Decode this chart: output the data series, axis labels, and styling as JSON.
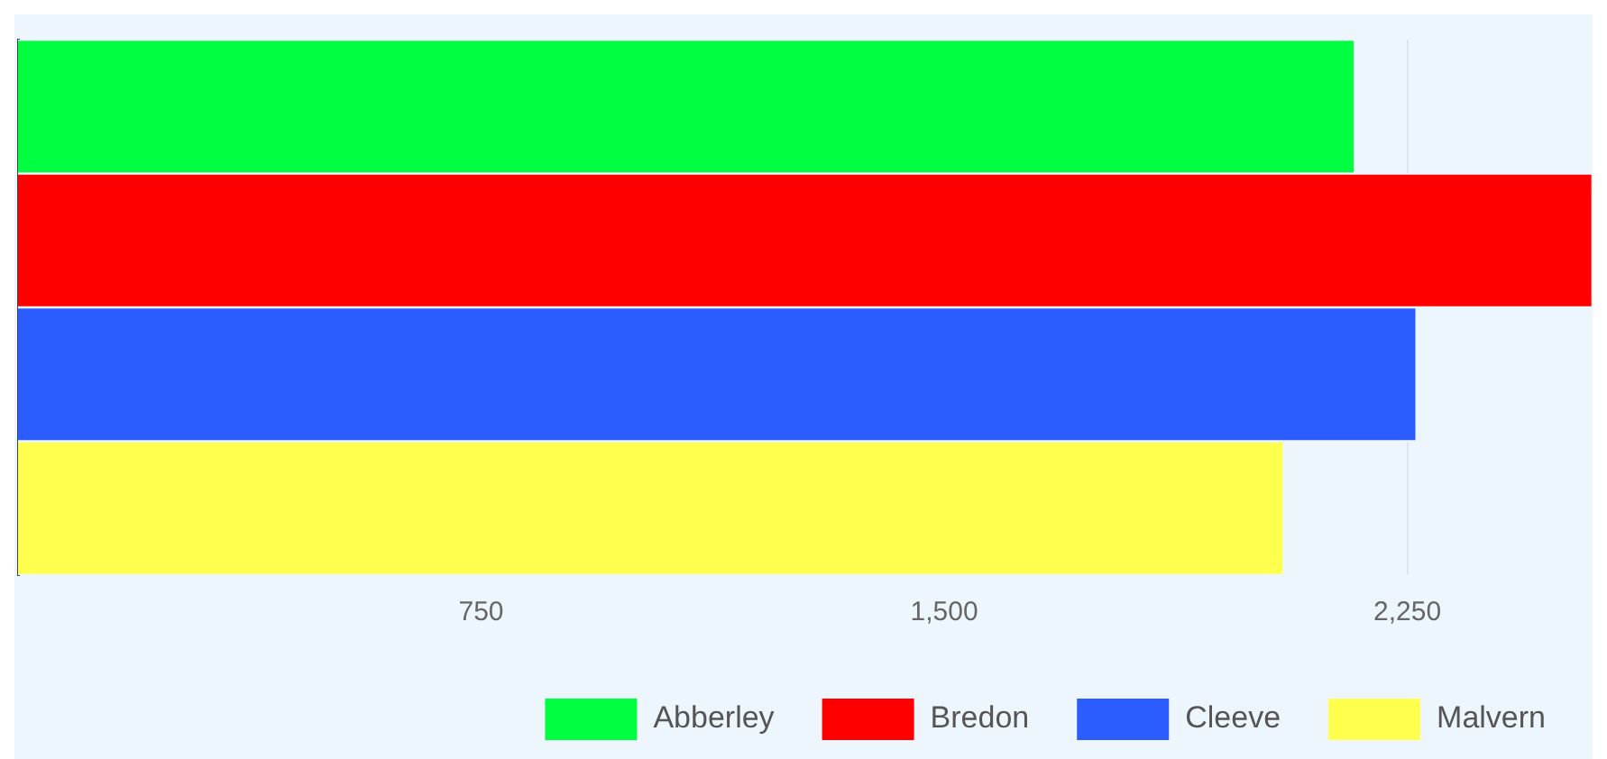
{
  "chart_data": {
    "type": "bar",
    "orientation": "horizontal",
    "categories": [
      null
    ],
    "series": [
      {
        "name": "Abberley",
        "color": "#00ff40",
        "values": [
          2165
        ]
      },
      {
        "name": "Bredon",
        "color": "#ff0000",
        "values": [
          2550
        ]
      },
      {
        "name": "Cleeve",
        "color": "#2a5cff",
        "values": [
          2265
        ]
      },
      {
        "name": "Malvern",
        "color": "#ffff4d",
        "values": [
          2050
        ]
      }
    ],
    "xlim": [
      0,
      2550
    ],
    "xticks": [
      750,
      {
        "value": 1500,
        "label": "1,500"
      },
      {
        "value": 2250,
        "label": "2,250"
      }
    ],
    "grid": "x",
    "legend": "bottom"
  }
}
